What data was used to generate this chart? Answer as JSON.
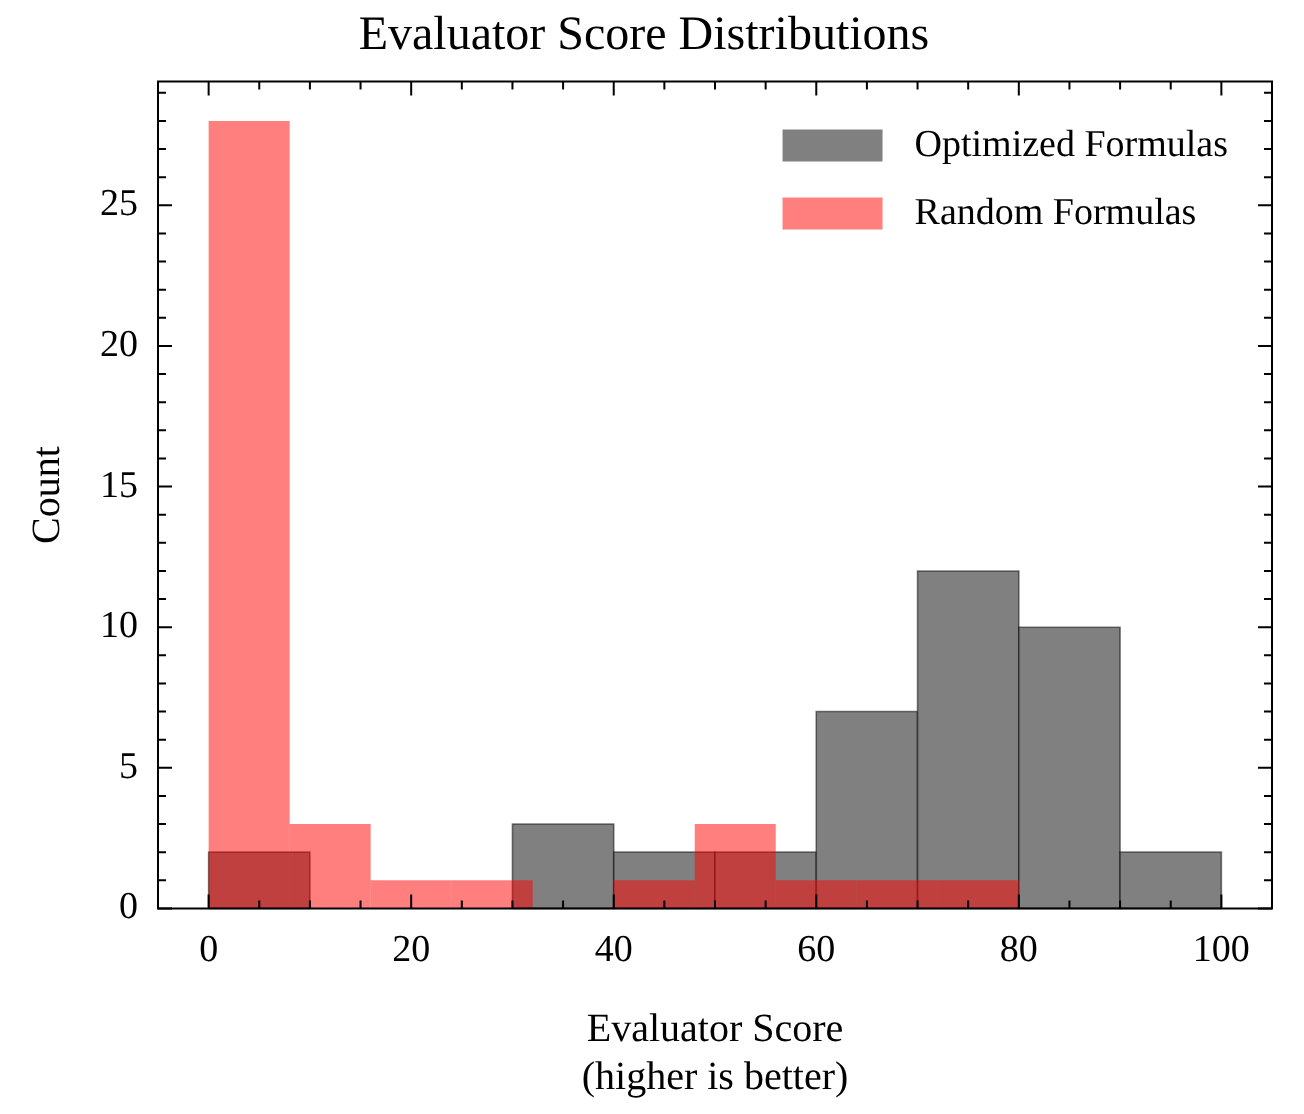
{
  "chart_data": {
    "type": "histogram",
    "title": "Evaluator Score Distributions",
    "xlabel": "Evaluator Score\n(higher is better)",
    "ylabel": "Count",
    "bins": [
      0,
      10,
      20,
      30,
      40,
      50,
      60,
      70,
      80,
      90,
      100
    ],
    "series": [
      {
        "name": "Optimized Formulas",
        "color": "#808080",
        "values": [
          2,
          0,
          0,
          3,
          2,
          2,
          7,
          12,
          10,
          2
        ]
      },
      {
        "name": "Random Formulas",
        "color": "#ff0000",
        "bins": [
          0,
          8,
          16,
          24,
          32,
          40,
          48,
          56,
          64,
          72,
          80
        ],
        "values": [
          28,
          3,
          1,
          1,
          0,
          1,
          3,
          1,
          1,
          1
        ]
      }
    ],
    "xlim": [
      -5,
      105
    ],
    "xticks": [
      0,
      {
        "value": 5,
        "label": null
      },
      {
        "value": 10,
        "label": null
      },
      {
        "value": 15,
        "label": null
      },
      20,
      {
        "value": 25,
        "label": null
      },
      {
        "value": 30,
        "label": null
      },
      {
        "value": 35,
        "label": null
      },
      40,
      {
        "value": 45,
        "label": null
      },
      {
        "value": 50,
        "label": null
      },
      {
        "value": 55,
        "label": null
      },
      60,
      {
        "value": 65,
        "label": null
      },
      {
        "value": 70,
        "label": null
      },
      {
        "value": 75,
        "label": null
      },
      80,
      {
        "value": 85,
        "label": null
      },
      {
        "value": 90,
        "label": null
      },
      {
        "value": 95,
        "label": null
      },
      100
    ],
    "ylim": [
      0,
      29.4
    ],
    "yticks": [
      0,
      {
        "value": 1,
        "label": null
      },
      {
        "value": 2,
        "label": null
      },
      {
        "value": 3,
        "label": null
      },
      {
        "value": 4,
        "label": null
      },
      5,
      {
        "value": 6,
        "label": null
      },
      {
        "value": 7,
        "label": null
      },
      {
        "value": 8,
        "label": null
      },
      {
        "value": 9,
        "label": null
      },
      10,
      {
        "value": 11,
        "label": null
      },
      {
        "value": 12,
        "label": null
      },
      {
        "value": 13,
        "label": null
      },
      {
        "value": 14,
        "label": null
      },
      15,
      {
        "value": 16,
        "label": null
      },
      {
        "value": 17,
        "label": null
      },
      {
        "value": 18,
        "label": null
      },
      {
        "value": 19,
        "label": null
      },
      20,
      {
        "value": 21,
        "label": null
      },
      {
        "value": 22,
        "label": null
      },
      {
        "value": 23,
        "label": null
      },
      {
        "value": 24,
        "label": null
      },
      25,
      {
        "value": 26,
        "label": null
      },
      {
        "value": 27,
        "label": null
      },
      {
        "value": 28,
        "label": null
      },
      {
        "value": 29,
        "label": null
      }
    ],
    "grid": false,
    "legend": "top right"
  }
}
